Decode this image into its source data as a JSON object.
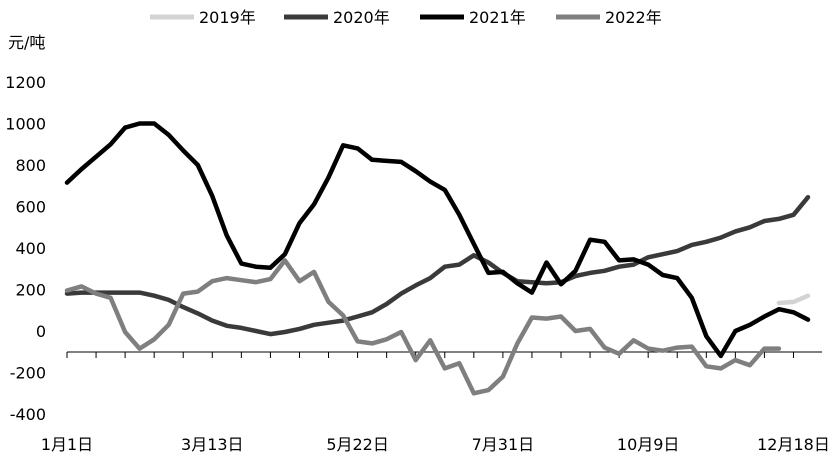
{
  "chart_data": {
    "type": "line",
    "ylabel": "元/吨",
    "ylim": [
      -400,
      1200
    ],
    "yticks": [
      -400,
      -200,
      0,
      200,
      400,
      600,
      800,
      1000,
      1200
    ],
    "xlim": [
      1,
      52
    ],
    "xticks": [
      {
        "x": 1,
        "label": "1月1日"
      },
      {
        "x": 11,
        "label": "3月13日"
      },
      {
        "x": 21,
        "label": "5月22日"
      },
      {
        "x": 31,
        "label": "7月31日"
      },
      {
        "x": 41,
        "label": "10月9日"
      },
      {
        "x": 51,
        "label": "12月18日"
      }
    ],
    "grid": false,
    "legend": "top",
    "series": [
      {
        "name": "2019年",
        "color": "#d3d3d3",
        "x": [
          50,
          51,
          52
        ],
        "y": [
          135,
          140,
          170
        ]
      },
      {
        "name": "2020年",
        "color": "#3a3a3a",
        "x": [
          1,
          2,
          3,
          4,
          5,
          6,
          7,
          8,
          9,
          10,
          11,
          12,
          13,
          14,
          15,
          16,
          17,
          18,
          19,
          20,
          21,
          22,
          23,
          24,
          25,
          26,
          27,
          28,
          29,
          30,
          31,
          32,
          33,
          34,
          35,
          36,
          37,
          38,
          39,
          40,
          41,
          42,
          43,
          44,
          45,
          46,
          47,
          48,
          49,
          50,
          51,
          52
        ],
        "y": [
          180,
          185,
          185,
          185,
          185,
          185,
          170,
          150,
          115,
          85,
          50,
          25,
          15,
          0,
          -15,
          -5,
          10,
          30,
          40,
          50,
          70,
          90,
          130,
          180,
          220,
          255,
          310,
          320,
          365,
          330,
          280,
          240,
          235,
          230,
          235,
          265,
          280,
          290,
          310,
          320,
          355,
          370,
          385,
          415,
          430,
          450,
          480,
          500,
          530,
          540,
          560,
          645
        ]
      },
      {
        "name": "2021年",
        "color": "#000000",
        "x": [
          1,
          2,
          3,
          4,
          5,
          6,
          7,
          8,
          9,
          10,
          11,
          12,
          13,
          14,
          15,
          16,
          17,
          18,
          19,
          20,
          21,
          22,
          23,
          24,
          25,
          26,
          27,
          28,
          29,
          30,
          31,
          32,
          33,
          34,
          35,
          36,
          37,
          38,
          39,
          40,
          41,
          42,
          43,
          44,
          45,
          46,
          47,
          48,
          49,
          50,
          51,
          52
        ],
        "y": [
          715,
          780,
          840,
          900,
          980,
          1000,
          1000,
          945,
          870,
          800,
          650,
          460,
          325,
          310,
          305,
          370,
          520,
          610,
          740,
          895,
          880,
          825,
          820,
          815,
          770,
          720,
          680,
          560,
          420,
          280,
          285,
          230,
          185,
          330,
          225,
          290,
          440,
          430,
          340,
          345,
          320,
          270,
          255,
          160,
          -25,
          -120,
          0,
          30,
          70,
          105,
          90,
          55
        ]
      },
      {
        "name": "2022年",
        "color": "#7f7f7f",
        "x": [
          1,
          2,
          3,
          4,
          5,
          6,
          7,
          8,
          9,
          10,
          11,
          12,
          13,
          14,
          15,
          16,
          17,
          18,
          19,
          20,
          21,
          22,
          23,
          24,
          25,
          26,
          27,
          28,
          29,
          30,
          31,
          32,
          33,
          34,
          35,
          36,
          37,
          38,
          39,
          40,
          41,
          42,
          43,
          44,
          45,
          46,
          47,
          48,
          49,
          50
        ],
        "y": [
          195,
          215,
          180,
          160,
          -5,
          -85,
          -40,
          30,
          180,
          190,
          240,
          255,
          245,
          235,
          250,
          340,
          240,
          285,
          140,
          75,
          -50,
          -60,
          -40,
          -5,
          -140,
          -45,
          -180,
          -155,
          -300,
          -285,
          -220,
          -60,
          65,
          60,
          70,
          0,
          10,
          -80,
          -110,
          -45,
          -85,
          -95,
          -80,
          -75,
          -170,
          -180,
          -140,
          -165,
          -85,
          -85
        ]
      }
    ]
  }
}
